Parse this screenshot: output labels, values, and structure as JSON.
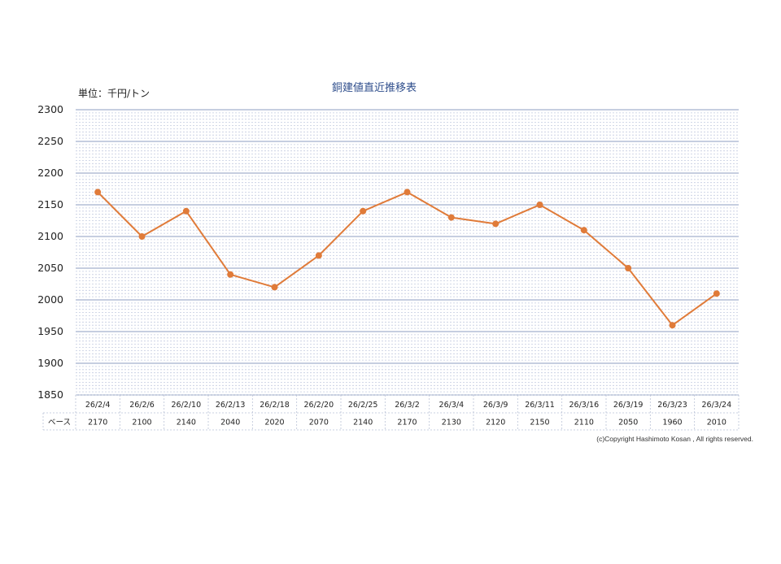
{
  "unit_label": "単位：千円/トン",
  "title": "銅建値直近推移表",
  "copyright": "(c)Copyright Hashimoto Kosan , All rights reserved.",
  "table_row_label": "ベース",
  "line_color": "#e07b39",
  "chart_data": {
    "type": "line",
    "title": "銅建値直近推移表",
    "ylabel": "単位：千円/トン",
    "xlabel": "",
    "ylim": [
      1850,
      2300
    ],
    "y_ticks": [
      1850,
      1900,
      1950,
      2000,
      2050,
      2100,
      2150,
      2200,
      2250,
      2300
    ],
    "grid": true,
    "legend": "none",
    "categories": [
      "26/2/4",
      "26/2/6",
      "26/2/10",
      "26/2/13",
      "26/2/18",
      "26/2/20",
      "26/2/25",
      "26/3/2",
      "26/3/4",
      "26/3/9",
      "26/3/11",
      "26/3/16",
      "26/3/19",
      "26/3/23",
      "26/3/24"
    ],
    "series": [
      {
        "name": "ベース",
        "values": [
          2170,
          2100,
          2140,
          2040,
          2020,
          2070,
          2140,
          2170,
          2130,
          2120,
          2150,
          2110,
          2050,
          1960,
          2010
        ]
      }
    ]
  }
}
